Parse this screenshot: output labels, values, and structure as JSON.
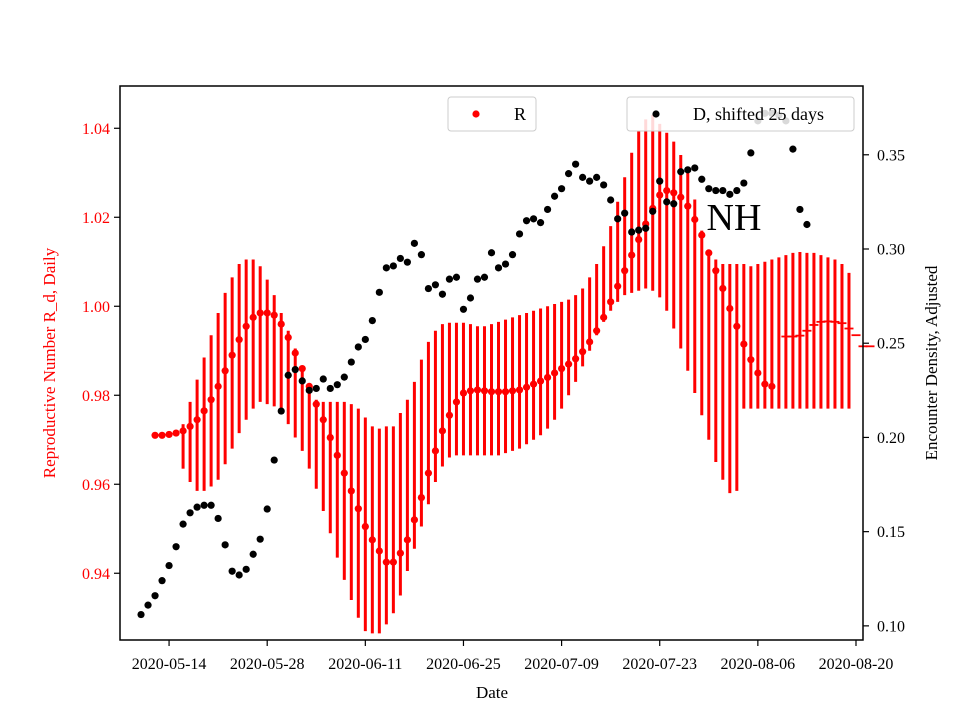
{
  "chart_data": {
    "type": "scatter",
    "title": "",
    "annotation": "NH",
    "xlabel": "Date",
    "ylabel_left": "Reproductive Number R_d, Daily",
    "ylabel_right": "Encounter Density, Adjusted",
    "x_tick_labels": [
      "2020-05-14",
      "2020-05-28",
      "2020-06-11",
      "2020-06-25",
      "2020-07-09",
      "2020-07-23",
      "2020-08-06",
      "2020-08-20"
    ],
    "y_left_tick_labels": [
      "0.94",
      "0.96",
      "0.98",
      "1.00",
      "1.02",
      "1.04"
    ],
    "y_right_tick_labels": [
      "0.10",
      "0.15",
      "0.20",
      "0.25",
      "0.30",
      "0.35"
    ],
    "x_range": [
      "2020-05-07",
      "2020-08-21"
    ],
    "y_left_range": [
      0.925,
      1.0495
    ],
    "y_right_range": [
      0.0925,
      0.3865
    ],
    "grid": false,
    "legend_left": {
      "label": "R",
      "color": "#ff0000",
      "position": "top-center"
    },
    "legend_right": {
      "label": "D, shifted 25 days",
      "color": "#000000",
      "position": "top-right"
    },
    "colors": {
      "r_series": "#ff0000",
      "d_series": "#000000",
      "left_axis_text": "#ff0000",
      "right_axis_text": "#000000"
    },
    "series_R": {
      "name": "R",
      "start_date": "2020-05-12",
      "values": [
        0.971,
        0.971,
        0.9712,
        0.9715,
        0.972,
        0.973,
        0.9745,
        0.9765,
        0.979,
        0.982,
        0.9855,
        0.989,
        0.9925,
        0.9955,
        0.9975,
        0.9985,
        0.9985,
        0.998,
        0.996,
        0.993,
        0.9895,
        0.986,
        0.982,
        0.978,
        0.9745,
        0.9705,
        0.9665,
        0.9625,
        0.9585,
        0.9545,
        0.9505,
        0.9475,
        0.945,
        0.9425,
        0.9425,
        0.9445,
        0.9475,
        0.952,
        0.957,
        0.9625,
        0.9675,
        0.972,
        0.9755,
        0.9785,
        0.9805,
        0.981,
        0.9812,
        0.981,
        0.9808,
        0.9808,
        0.9808,
        0.981,
        0.9812,
        0.9818,
        0.9825,
        0.9832,
        0.984,
        0.985,
        0.986,
        0.987,
        0.9882,
        0.9898,
        0.992,
        0.9945,
        0.9975,
        1.001,
        1.0045,
        1.008,
        1.0115,
        1.015,
        1.0185,
        1.022,
        1.025,
        1.026,
        1.0255,
        1.0245,
        1.0225,
        1.0195,
        1.016,
        1.012,
        1.008,
        1.004,
        0.9995,
        0.9955,
        0.9915,
        0.988,
        0.985,
        0.9825,
        0.982,
        null,
        0.9932,
        0.9932,
        0.9934,
        0.9945,
        0.9958,
        0.9965,
        0.9966,
        0.9965,
        0.9962,
        0.995,
        0.9935,
        0.991,
        0.991
      ],
      "err_low": [
        null,
        null,
        null,
        null,
        0.9635,
        0.9605,
        0.9585,
        0.9585,
        0.9595,
        0.961,
        0.9645,
        0.968,
        0.9715,
        0.9745,
        0.977,
        0.9785,
        0.978,
        0.9775,
        0.976,
        0.9735,
        0.9705,
        0.9675,
        0.9635,
        0.959,
        0.954,
        0.949,
        0.9435,
        0.9385,
        0.934,
        0.93,
        0.927,
        0.9265,
        0.9265,
        0.9285,
        0.931,
        0.935,
        0.9405,
        0.9455,
        0.9505,
        0.9555,
        0.9605,
        0.964,
        0.966,
        0.9665,
        0.9665,
        0.9665,
        0.9665,
        0.9665,
        0.9665,
        0.9665,
        0.967,
        0.9675,
        0.968,
        0.969,
        0.97,
        0.971,
        0.9725,
        0.9745,
        0.977,
        0.98,
        0.983,
        0.9865,
        0.99,
        0.9935,
        0.9965,
        0.999,
        1.001,
        1.0025,
        1.003,
        1.0035,
        1.004,
        1.0035,
        1.002,
        0.999,
        0.995,
        0.9905,
        0.9855,
        0.9805,
        0.9755,
        0.97,
        0.965,
        0.961,
        0.958,
        0.9585,
        null,
        null,
        null,
        null,
        null,
        null,
        null,
        null,
        null,
        null,
        null,
        null,
        null
      ],
      "err_high": [
        null,
        null,
        null,
        null,
        0.9735,
        0.9785,
        0.9835,
        0.9885,
        0.9935,
        0.9985,
        1.003,
        1.0065,
        1.0095,
        1.0105,
        1.0105,
        1.009,
        1.006,
        1.0025,
        0.9985,
        0.9945,
        0.9905,
        0.9865,
        0.982,
        0.979,
        0.9785,
        0.9785,
        0.9785,
        0.9785,
        0.978,
        0.977,
        0.975,
        0.973,
        0.9725,
        0.973,
        0.973,
        0.976,
        0.979,
        0.983,
        0.988,
        0.992,
        0.9945,
        0.996,
        0.9963,
        0.9963,
        0.9963,
        0.996,
        0.9955,
        0.9955,
        0.996,
        0.9965,
        0.997,
        0.9975,
        0.998,
        0.9985,
        0.999,
        0.9995,
        1.0,
        1.0005,
        1.001,
        1.0015,
        1.0025,
        1.004,
        1.0065,
        1.0095,
        1.0135,
        1.018,
        1.0235,
        1.029,
        1.0345,
        1.0395,
        1.042,
        1.043,
        1.041,
        1.039,
        1.037,
        1.034,
        1.03,
        1.024,
        1.017,
        1.012,
        1.0105,
        1.0095,
        1.0095,
        1.0095,
        1.0095,
        1.009,
        1.0095,
        1.01,
        1.0105,
        1.011,
        1.0115,
        1.012,
        1.0122,
        1.012,
        1.012,
        1.0115,
        1.011,
        1.0105,
        1.0095,
        1.0075,
        null,
        null,
        null
      ],
      "err_low_tail": [
        null,
        null,
        null,
        null,
        null,
        null,
        null,
        null,
        null,
        null,
        null,
        null,
        null,
        null,
        null,
        null,
        null,
        null,
        null,
        null,
        null,
        null,
        null,
        null,
        null,
        null,
        null,
        null,
        null,
        null,
        null,
        null,
        null,
        null,
        null,
        null,
        null,
        null,
        null,
        null,
        null,
        null,
        null,
        null,
        null,
        null,
        null,
        null,
        null,
        null,
        null,
        null,
        null,
        null,
        null,
        null,
        null,
        null,
        null,
        null,
        null,
        null,
        null,
        null,
        null,
        null,
        null,
        null,
        null,
        null,
        null,
        null,
        null,
        null,
        null,
        null,
        null,
        null,
        null,
        null,
        null,
        null,
        null,
        null,
        0.977,
        0.977,
        0.977,
        0.977,
        0.977,
        0.977,
        0.977,
        0.977,
        0.977,
        0.977,
        0.977,
        0.977,
        0.977,
        0.977,
        0.977,
        0.977,
        0.9765,
        0.9765,
        0.976
      ]
    },
    "series_D": {
      "name": "D, shifted 25 days",
      "start_date": "2020-05-10",
      "values": [
        0.106,
        0.111,
        0.116,
        0.124,
        0.132,
        0.142,
        0.154,
        0.16,
        0.163,
        0.164,
        0.164,
        0.157,
        0.143,
        0.129,
        0.127,
        0.13,
        0.138,
        0.146,
        0.162,
        0.188,
        0.214,
        0.233,
        0.236,
        0.23,
        0.225,
        0.226,
        0.231,
        0.226,
        0.228,
        0.232,
        0.24,
        0.248,
        0.252,
        0.262,
        0.277,
        0.29,
        0.291,
        0.295,
        0.293,
        0.303,
        0.297,
        0.279,
        0.281,
        0.276,
        0.284,
        0.285,
        0.268,
        0.274,
        0.284,
        0.285,
        0.298,
        0.29,
        0.292,
        0.297,
        0.308,
        0.315,
        0.316,
        0.314,
        0.321,
        0.328,
        0.332,
        0.34,
        0.345,
        0.338,
        0.336,
        0.338,
        0.334,
        0.326,
        0.316,
        0.319,
        0.309,
        0.31,
        0.311,
        0.32,
        0.336,
        0.325,
        0.324,
        0.341,
        0.342,
        0.343,
        0.337,
        0.332,
        0.331,
        0.331,
        0.329,
        0.331,
        0.335,
        0.351,
        0.368,
        0.372,
        0.372,
        0.371,
        0.368,
        0.353,
        0.321,
        0.313
      ]
    }
  }
}
